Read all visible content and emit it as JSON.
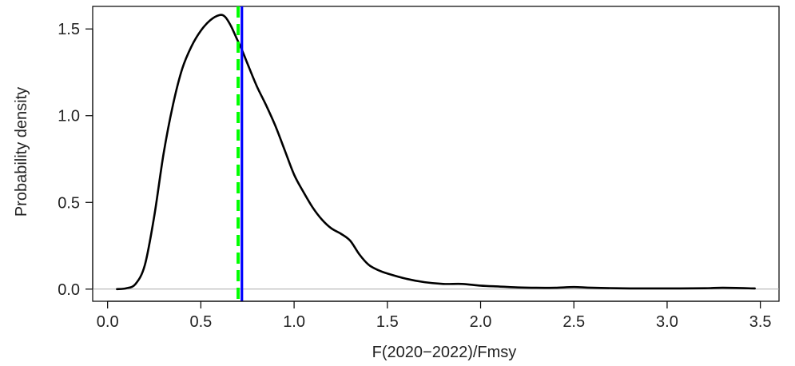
{
  "chart_data": {
    "type": "line",
    "title": "",
    "xlabel": "F(2020−2022)/Fmsy",
    "ylabel": "Probability density",
    "xlim": [
      -0.08,
      3.6
    ],
    "ylim": [
      -0.07,
      1.63
    ],
    "x_ticks": [
      0.0,
      0.5,
      1.0,
      1.5,
      2.0,
      2.5,
      3.0,
      3.5
    ],
    "x_tick_labels": [
      "0.0",
      "0.5",
      "1.0",
      "1.5",
      "2.0",
      "2.5",
      "3.0",
      "3.5"
    ],
    "y_ticks": [
      0.0,
      0.5,
      1.0,
      1.5
    ],
    "y_tick_labels": [
      "0.0",
      "0.5",
      "1.0",
      "1.5"
    ],
    "grid": false,
    "legend": "none",
    "series": [
      {
        "color": "#000000",
        "x": [
          0.05,
          0.1,
          0.15,
          0.2,
          0.25,
          0.3,
          0.35,
          0.4,
          0.45,
          0.5,
          0.55,
          0.6,
          0.63,
          0.66,
          0.69,
          0.72,
          0.75,
          0.8,
          0.85,
          0.9,
          0.95,
          1.0,
          1.05,
          1.1,
          1.15,
          1.2,
          1.25,
          1.3,
          1.35,
          1.4,
          1.45,
          1.5,
          1.6,
          1.7,
          1.8,
          1.9,
          2.0,
          2.1,
          2.2,
          2.3,
          2.4,
          2.5,
          2.6,
          2.8,
          3.0,
          3.2,
          3.3,
          3.47
        ],
        "y": [
          0.0,
          0.005,
          0.03,
          0.14,
          0.42,
          0.78,
          1.06,
          1.27,
          1.4,
          1.49,
          1.55,
          1.58,
          1.57,
          1.52,
          1.45,
          1.38,
          1.3,
          1.17,
          1.06,
          0.94,
          0.8,
          0.66,
          0.56,
          0.47,
          0.4,
          0.35,
          0.32,
          0.28,
          0.2,
          0.14,
          0.11,
          0.09,
          0.06,
          0.04,
          0.03,
          0.03,
          0.02,
          0.015,
          0.01,
          0.008,
          0.008,
          0.012,
          0.008,
          0.004,
          0.004,
          0.005,
          0.008,
          0.004
        ]
      }
    ],
    "reference_lines": [
      {
        "orientation": "vertical",
        "x": 0.72,
        "color": "#0000ff",
        "style": "solid"
      },
      {
        "orientation": "vertical",
        "x": 0.7,
        "color": "#00ff00",
        "style": "dashed"
      },
      {
        "orientation": "horizontal",
        "y": 0.0,
        "color": "#aaaaaa",
        "style": "solid"
      }
    ]
  }
}
